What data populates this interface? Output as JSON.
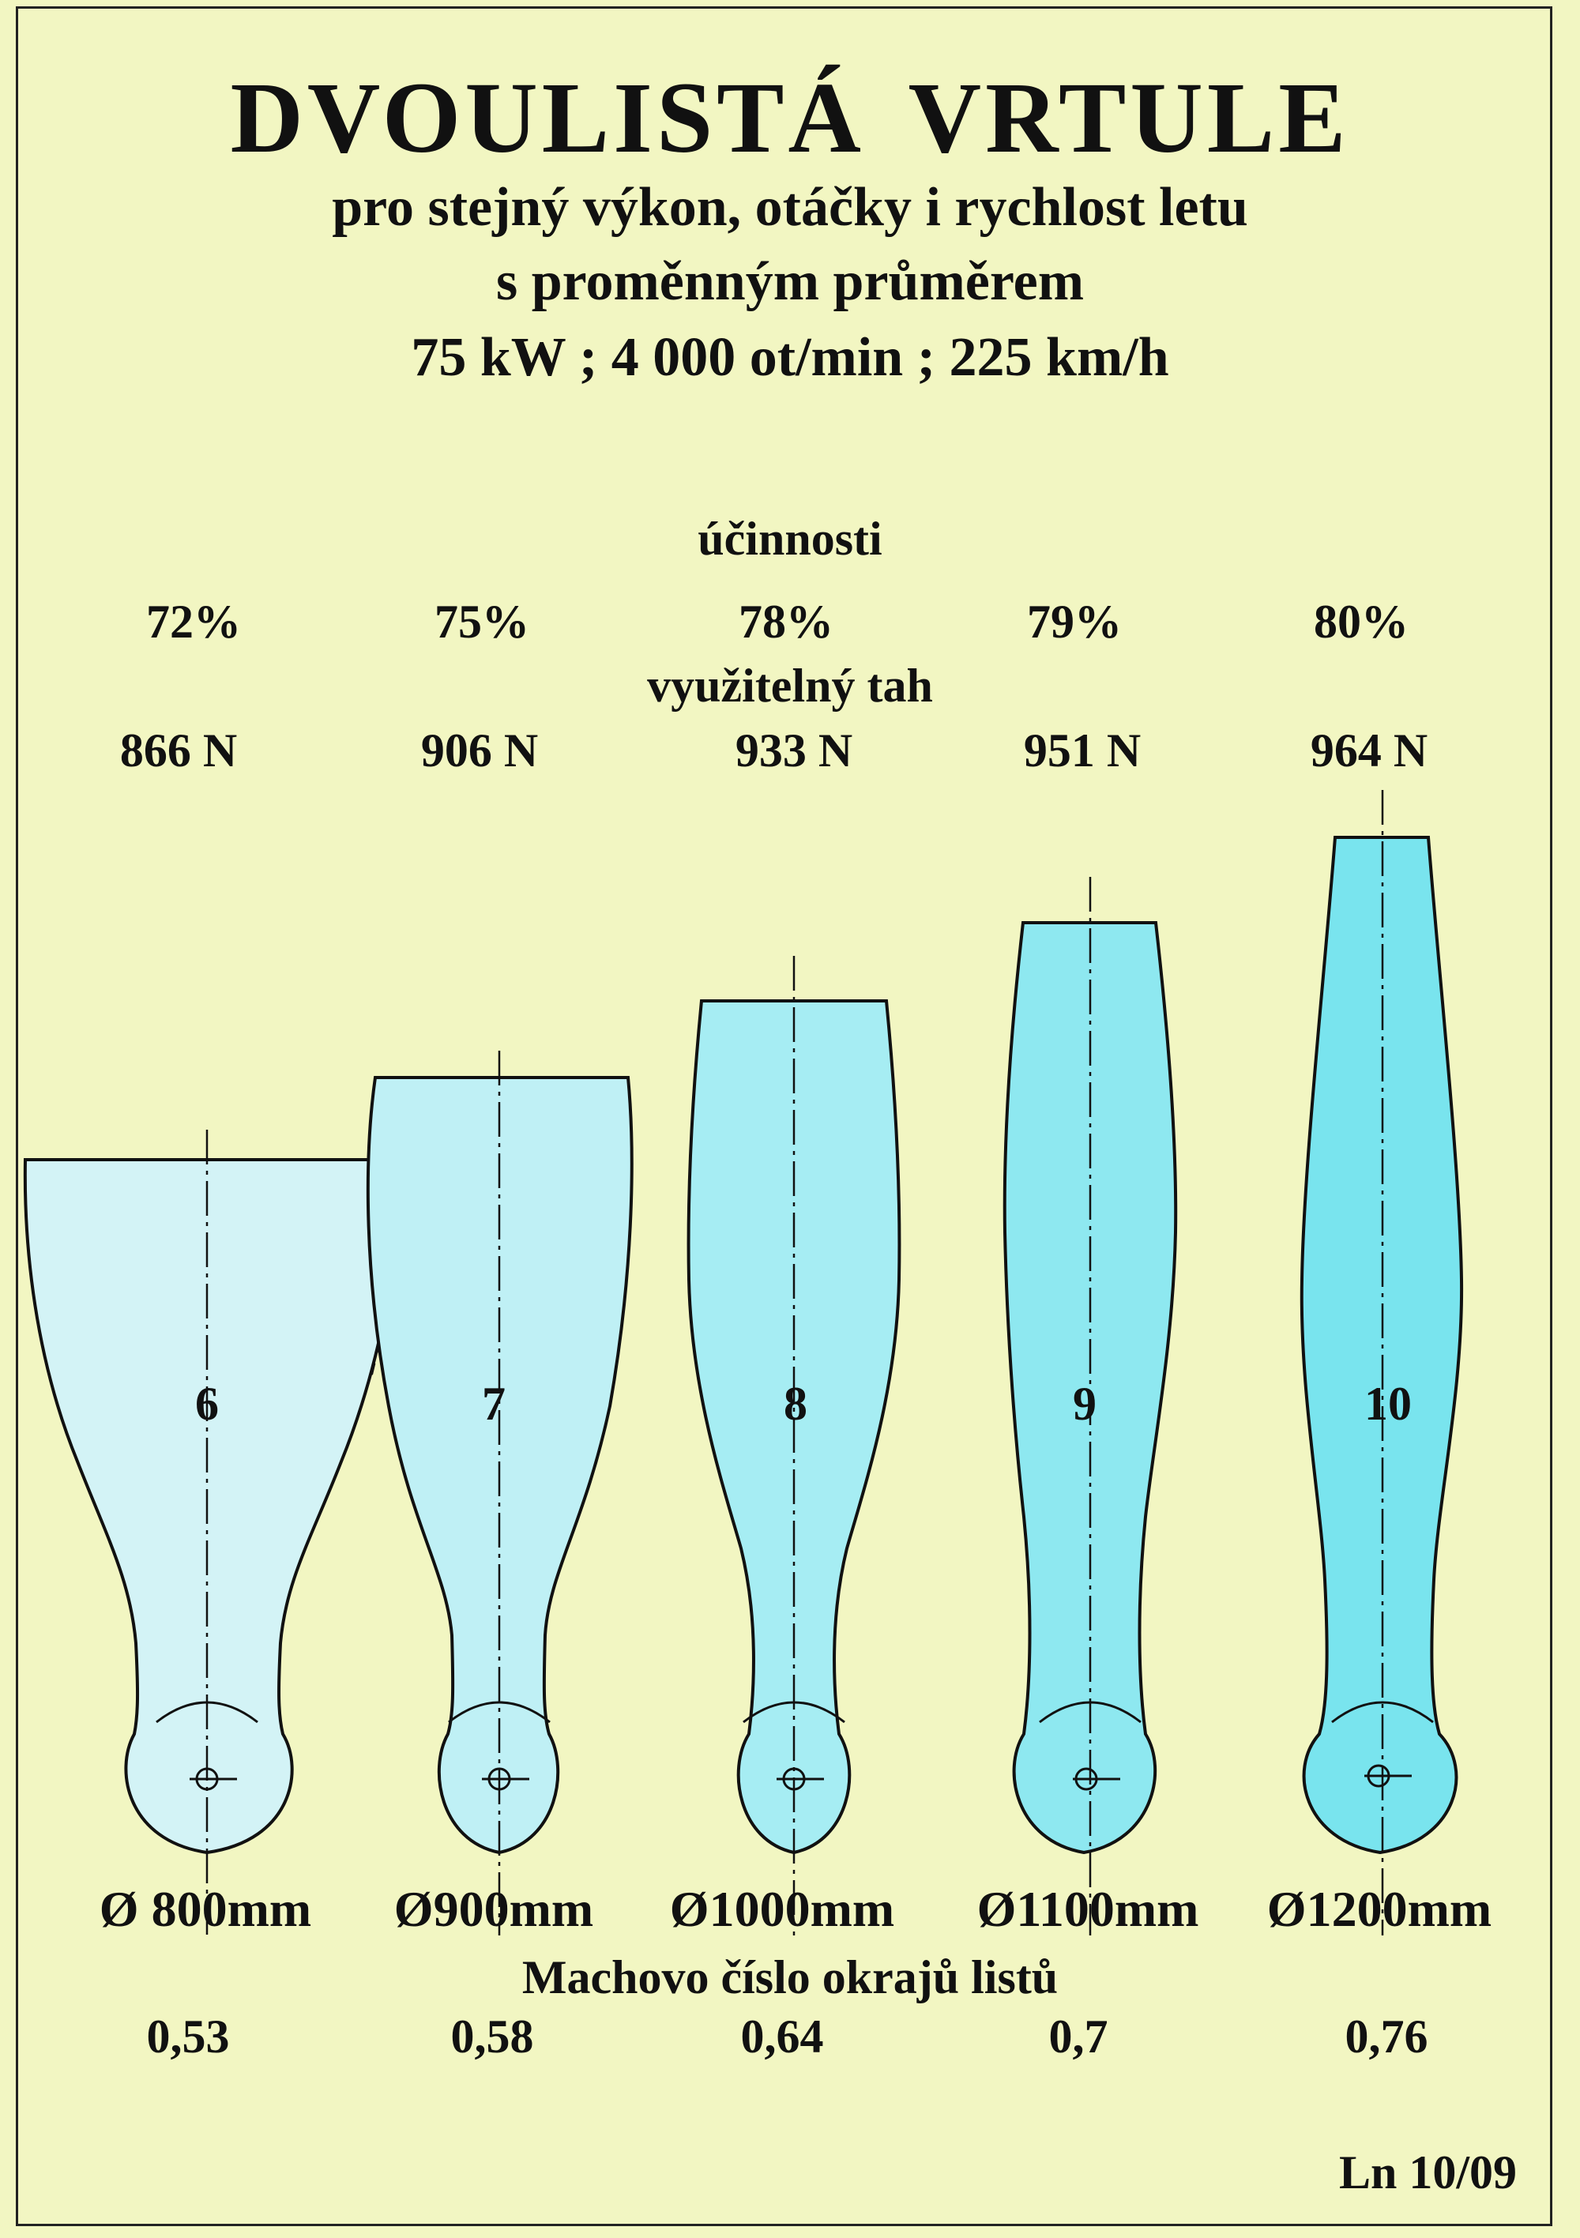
{
  "title": "DVOULISTÁ  VRTULE",
  "subtitle_lines": [
    "pro stejný výkon, otáčky i rychlost letu",
    "s proměnným průměrem",
    "75 kW ; 4 000 ot/min ; 225 km/h"
  ],
  "efficiency_label": "účinnosti",
  "thrust_label": "využitelný tah",
  "mach_label": "Machovo číslo okrajů listů",
  "blades": [
    {
      "number": "6",
      "efficiency": "72%",
      "thrust": "866 N",
      "diameter": "Ø 800mm",
      "mach": "0,53",
      "fill": "#d3f3f6"
    },
    {
      "number": "7",
      "efficiency": "75%",
      "thrust": "906 N",
      "diameter": "Ø900mm",
      "mach": "0,58",
      "fill": "#bff0f5"
    },
    {
      "number": "8",
      "efficiency": "78%",
      "thrust": "933 N",
      "diameter": "Ø1000mm",
      "mach": "0,64",
      "fill": "#a6edf3"
    },
    {
      "number": "9",
      "efficiency": "79%",
      "thrust": "951 N",
      "diameter": "Ø1100mm",
      "mach": "0,7",
      "fill": "#8ee8f0"
    },
    {
      "number": "10",
      "efficiency": "80%",
      "thrust": "964 N",
      "diameter": "Ø1200mm",
      "mach": "0,76",
      "fill": "#79e4ee"
    }
  ],
  "footer": "Ln 10/09"
}
